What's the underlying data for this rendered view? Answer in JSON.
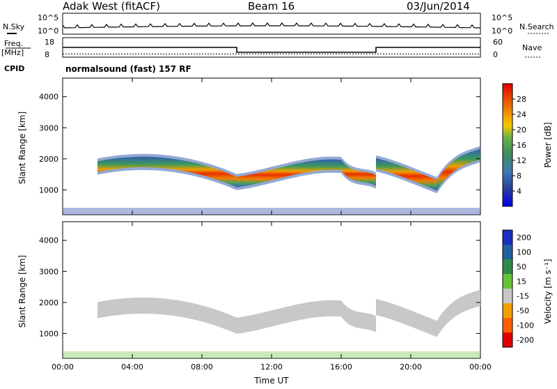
{
  "header": {
    "radar": "Adak West (fitACF)",
    "beam": "Beam 16",
    "date": "03/Jun/2014"
  },
  "top_panels": {
    "nsky_label": "N.Sky",
    "nsearch_label": "N.Search",
    "nsky_ticks": [
      "10^5",
      "10^0"
    ],
    "nsearch_ticks": [
      "10^5",
      "10^0"
    ],
    "freq_label": "Freq.",
    "freq_unit": "[MHz]",
    "freq_ticks": [
      "18",
      "8"
    ],
    "nave_label": "Nave",
    "nave_ticks": [
      "60",
      "0"
    ],
    "cpid_label": "CPID",
    "cpid_value": "normalsound (fast) 157 RF"
  },
  "chart_data": [
    {
      "type": "line",
      "title": "Freq. [MHz]",
      "x_unit": "hours UT",
      "segments": [
        {
          "x": [
            0,
            10
          ],
          "freq": 13
        },
        {
          "x": [
            10,
            18
          ],
          "freq": 10.5
        },
        {
          "x": [
            18,
            24
          ],
          "freq": 13
        }
      ],
      "nave": 10,
      "ylim": [
        8,
        18
      ]
    },
    {
      "type": "heatmap",
      "ylabel": "Slant Range [km]",
      "xlabel": "Time UT",
      "x_ticks": [
        "00:00",
        "04:00",
        "08:00",
        "12:00",
        "16:00",
        "20:00",
        "00:00"
      ],
      "y_ticks": [
        "1000",
        "2000",
        "3000",
        "4000"
      ],
      "xlim": [
        0,
        24
      ],
      "ylim": [
        200,
        4600
      ],
      "colorbar": {
        "label": "Power [dB]",
        "ticks": [
          "4",
          "8",
          "12",
          "16",
          "20",
          "24",
          "28"
        ],
        "colors": [
          "#0000ee",
          "#283c9c",
          "#3f7ab5",
          "#3d8a5f",
          "#6ab043",
          "#f5c800",
          "#f09100",
          "#e84a00",
          "#e00000"
        ]
      },
      "echo_bands": [
        {
          "t": [
            2.0,
            10.0
          ],
          "r": [
            1750,
            2050,
            1900,
            1250
          ]
        },
        {
          "t": [
            10.0,
            16.0
          ],
          "r": [
            1250,
            1400,
            1900,
            1800
          ]
        },
        {
          "t": [
            16.0,
            18.0
          ],
          "r": [
            1800,
            1300,
            1500,
            1300
          ]
        },
        {
          "t": [
            18.0,
            21.5
          ],
          "r": [
            1850,
            1700,
            1400,
            1150
          ]
        },
        {
          "t": [
            21.5,
            24.0
          ],
          "r": [
            1150,
            1900,
            2000,
            2150
          ]
        }
      ]
    },
    {
      "type": "heatmap",
      "ylabel": "Slant Range [km]",
      "xlabel": "Time UT",
      "x_ticks": [
        "00:00",
        "04:00",
        "08:00",
        "12:00",
        "16:00",
        "20:00",
        "00:00"
      ],
      "y_ticks": [
        "1000",
        "2000",
        "3000",
        "4000"
      ],
      "xlim": [
        0,
        24
      ],
      "ylim": [
        200,
        4600
      ],
      "colorbar": {
        "label": "Velocity [m s⁻¹]",
        "ticks": [
          "200",
          "100",
          "50",
          "15",
          "-15",
          "-50",
          "-100",
          "-200"
        ],
        "colors": [
          "#1a2fc0",
          "#2060a0",
          "#2f8a4a",
          "#66c23a",
          "#c8c8c8",
          "#f0a000",
          "#ff6000",
          "#e00000"
        ]
      }
    }
  ]
}
